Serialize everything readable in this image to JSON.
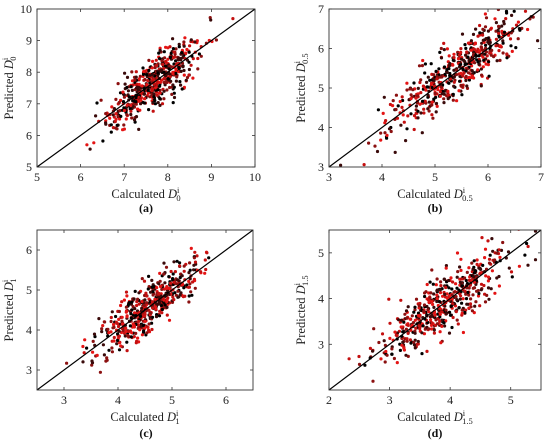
{
  "chart_data": [
    {
      "type": "scatter",
      "panel_label": "(a)",
      "xlabel": {
        "main": "Calculated ",
        "sym": "D",
        "sub": "0",
        "sup": "i"
      },
      "ylabel": {
        "main": "Predicted ",
        "sym": "D",
        "sub": "0",
        "sup": "i"
      },
      "xlim": [
        5,
        10
      ],
      "ylim": [
        5,
        10
      ],
      "xticks": [
        5,
        6,
        7,
        8,
        9,
        10
      ],
      "yticks": [
        5,
        6,
        7,
        8,
        9,
        10
      ],
      "reference_line": "y = x",
      "cloud": {
        "center": 7.7,
        "spread": 0.55,
        "noise": 0.38,
        "n": 520,
        "seed": 11
      },
      "colors": [
        "#e41414",
        "#c41010",
        "#8b1010",
        "#3a0a0a",
        "#000000"
      ]
    },
    {
      "type": "scatter",
      "panel_label": "(b)",
      "xlabel": {
        "main": "Calculated ",
        "sym": "D",
        "sub": "0.5",
        "sup": "i"
      },
      "ylabel": {
        "main": "Predicted ",
        "sym": "D",
        "sub": "0.5",
        "sup": "i"
      },
      "xlim": [
        3,
        7
      ],
      "ylim": [
        3,
        7
      ],
      "xticks": [
        3,
        4,
        5,
        6,
        7
      ],
      "yticks": [
        3,
        4,
        5,
        6,
        7
      ],
      "reference_line": "y = x",
      "cloud": {
        "center": 5.4,
        "spread": 0.6,
        "noise": 0.35,
        "n": 520,
        "seed": 23
      },
      "colors": [
        "#e41414",
        "#c41010",
        "#8b1010",
        "#3a0a0a",
        "#000000"
      ]
    },
    {
      "type": "scatter",
      "panel_label": "(c)",
      "xlabel": {
        "main": "Calculated ",
        "sym": "D",
        "sub": "1",
        "sup": "i"
      },
      "ylabel": {
        "main": "Predicted ",
        "sym": "D",
        "sub": "1",
        "sup": "i"
      },
      "xlim": [
        2.5,
        6.5
      ],
      "ylim": [
        2.5,
        6.5
      ],
      "xticks": [
        3,
        4,
        5,
        6
      ],
      "yticks": [
        3,
        4,
        5,
        6
      ],
      "reference_line": "y = x",
      "cloud": {
        "center": 4.6,
        "spread": 0.5,
        "noise": 0.3,
        "n": 520,
        "seed": 37
      },
      "colors": [
        "#e41414",
        "#c41010",
        "#8b1010",
        "#3a0a0a",
        "#000000"
      ]
    },
    {
      "type": "scatter",
      "panel_label": "(d)",
      "xlabel": {
        "main": "Calculated ",
        "sym": "D",
        "sub": "1.5",
        "sup": "i"
      },
      "ylabel": {
        "main": "Predicted ",
        "sym": "D",
        "sub": "1.5",
        "sup": "i"
      },
      "xlim": [
        2,
        5.5
      ],
      "ylim": [
        2,
        5.5
      ],
      "xticks": [
        2,
        3,
        4,
        5
      ],
      "yticks": [
        3,
        4,
        5
      ],
      "reference_line": "y = x",
      "cloud": {
        "center": 3.9,
        "spread": 0.55,
        "noise": 0.32,
        "n": 520,
        "seed": 53
      },
      "colors": [
        "#e41414",
        "#c41010",
        "#8b1010",
        "#3a0a0a",
        "#000000"
      ]
    }
  ]
}
